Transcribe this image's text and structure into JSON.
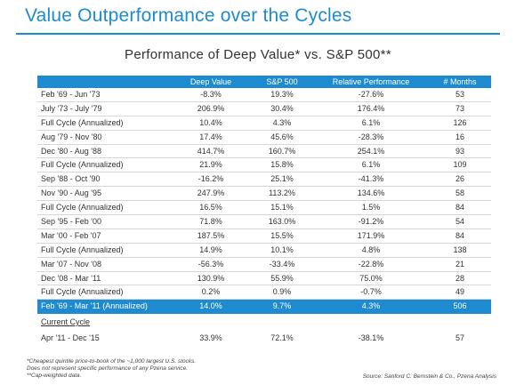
{
  "title": "Value Outperformance over the Cycles",
  "subtitle": "Performance of Deep Value* vs. S&P 500**",
  "table": {
    "headers": [
      "",
      "Deep Value",
      "S&P 500",
      "Relative Performance",
      "# Months"
    ],
    "rows": [
      {
        "period": "Feb '69 - Jun '73",
        "deep_value": "-8.3%",
        "sp500": "19.3%",
        "relative": "-27.6%",
        "months": "53"
      },
      {
        "period": "July '73 - July '79",
        "deep_value": "206.9%",
        "sp500": "30.4%",
        "relative": "176.4%",
        "months": "73"
      },
      {
        "period": "Full Cycle (Annualized)",
        "deep_value": "10.4%",
        "sp500": "4.3%",
        "relative": "6.1%",
        "months": "126"
      },
      {
        "period": "Aug '79 - Nov '80",
        "deep_value": "17.4%",
        "sp500": "45.6%",
        "relative": "-28.3%",
        "months": "16"
      },
      {
        "period": "Dec '80 - Aug '88",
        "deep_value": "414.7%",
        "sp500": "160.7%",
        "relative": "254.1%",
        "months": "93"
      },
      {
        "period": "Full Cycle (Annualized)",
        "deep_value": "21.9%",
        "sp500": "15.8%",
        "relative": "6.1%",
        "months": "109"
      },
      {
        "period": "Sep '88 - Oct '90",
        "deep_value": "-16.2%",
        "sp500": "25.1%",
        "relative": "-41.3%",
        "months": "26"
      },
      {
        "period": "Nov '90 - Aug '95",
        "deep_value": "247.9%",
        "sp500": "113.2%",
        "relative": "134.6%",
        "months": "58"
      },
      {
        "period": "Full Cycle (Annualized)",
        "deep_value": "16.5%",
        "sp500": "15.1%",
        "relative": "1.5%",
        "months": "84"
      },
      {
        "period": "Sep '95 - Feb '00",
        "deep_value": "71.8%",
        "sp500": "163.0%",
        "relative": "-91.2%",
        "months": "54"
      },
      {
        "period": "Mar '00 - Feb '07",
        "deep_value": "187.5%",
        "sp500": "15.5%",
        "relative": "171.9%",
        "months": "84"
      },
      {
        "period": "Full Cycle (Annualized)",
        "deep_value": "14.9%",
        "sp500": "10.1%",
        "relative": "4.8%",
        "months": "138"
      },
      {
        "period": "Mar '07 - Nov '08",
        "deep_value": "-56.3%",
        "sp500": "-33.4%",
        "relative": "-22.8%",
        "months": "21"
      },
      {
        "period": "Dec '08 - Mar '11",
        "deep_value": "130.9%",
        "sp500": "55.9%",
        "relative": "75.0%",
        "months": "28"
      },
      {
        "period": "Full Cycle (Annualized)",
        "deep_value": "0.2%",
        "sp500": "0.9%",
        "relative": "-0.7%",
        "months": "49"
      }
    ],
    "summary": {
      "period": "Feb '69 - Mar '11 (Annualized)",
      "deep_value": "14.0%",
      "sp500": "9.7%",
      "relative": "4.3%",
      "months": "506"
    }
  },
  "current_cycle": {
    "label": "Current Cycle",
    "row": {
      "period": "Apr '11 - Dec '15",
      "deep_value": "33.9%",
      "sp500": "72.1%",
      "relative": "-38.1%",
      "months": "57"
    }
  },
  "footnotes": [
    "*Cheapest quintile price-to-book of the ~1,000 largest U.S. stocks.",
    "Does not represent specific performance of any Pzena service.",
    "**Cap-weighted data."
  ],
  "source": "Source: Sanford C. Bernstein & Co., Pzena Analysis",
  "colors": {
    "accent": "#1e8ad0",
    "row_divider": "#d7d7d7"
  }
}
